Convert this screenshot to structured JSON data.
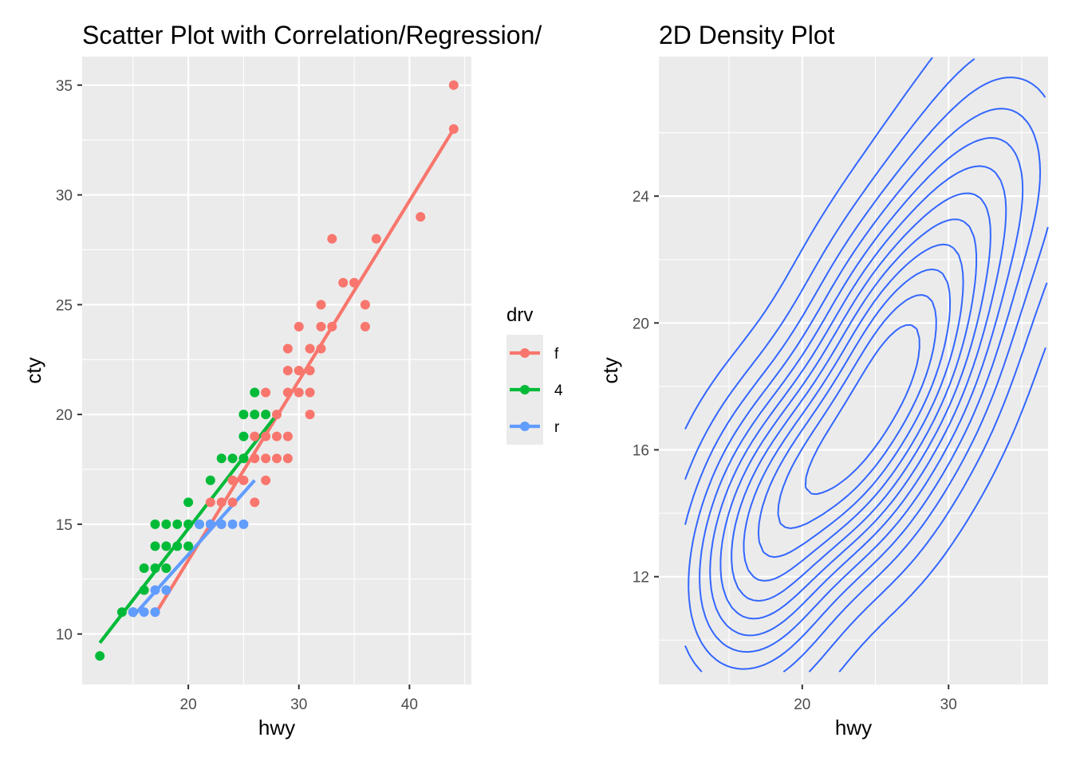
{
  "chart_data": [
    {
      "type": "scatter",
      "title": "Scatter Plot with Correlation/Regression/",
      "xlabel": "hwy",
      "ylabel": "cty",
      "xlim": [
        10.4,
        45.6
      ],
      "ylim": [
        7.7,
        36.3
      ],
      "xticks": [
        20,
        30,
        40
      ],
      "yticks": [
        10,
        15,
        20,
        25,
        30,
        35
      ],
      "grid": true,
      "legend": {
        "title": "drv",
        "placement": "right",
        "entries": [
          {
            "label": "f",
            "color": "#F8766D"
          },
          {
            "label": "4",
            "color": "#00BA38"
          },
          {
            "label": "r",
            "color": "#619CFF"
          }
        ]
      },
      "series": [
        {
          "name": "f",
          "color": "#F8766D",
          "points": [
            [
              44,
              35
            ],
            [
              44,
              33
            ],
            [
              41,
              29
            ],
            [
              37,
              28
            ],
            [
              33,
              28
            ],
            [
              35,
              26
            ],
            [
              34,
              26
            ],
            [
              36,
              25
            ],
            [
              32,
              25
            ],
            [
              30,
              24
            ],
            [
              32,
              24
            ],
            [
              33,
              24
            ],
            [
              36,
              24
            ],
            [
              29,
              23
            ],
            [
              31,
              23
            ],
            [
              32,
              23
            ],
            [
              29,
              22
            ],
            [
              30,
              22
            ],
            [
              31,
              22
            ],
            [
              29,
              21
            ],
            [
              30,
              21
            ],
            [
              31,
              21
            ],
            [
              27,
              21
            ],
            [
              31,
              20
            ],
            [
              28,
              20
            ],
            [
              26,
              19
            ],
            [
              27,
              19
            ],
            [
              28,
              19
            ],
            [
              29,
              19
            ],
            [
              26,
              18
            ],
            [
              27,
              18
            ],
            [
              28,
              18
            ],
            [
              29,
              18
            ],
            [
              24,
              17
            ],
            [
              25,
              17
            ],
            [
              27,
              17
            ],
            [
              22,
              16
            ],
            [
              23,
              16
            ],
            [
              24,
              16
            ],
            [
              26,
              16
            ],
            [
              22,
              15
            ],
            [
              23,
              15
            ],
            [
              17,
              11
            ]
          ],
          "regression": [
            [
              17,
              10.9
            ],
            [
              44,
              33
            ]
          ]
        },
        {
          "name": "4",
          "color": "#00BA38",
          "points": [
            [
              12,
              9
            ],
            [
              14,
              11
            ],
            [
              15,
              11
            ],
            [
              16,
              12
            ],
            [
              16,
              13
            ],
            [
              17,
              13
            ],
            [
              18,
              13
            ],
            [
              17,
              14
            ],
            [
              18,
              14
            ],
            [
              19,
              14
            ],
            [
              20,
              14
            ],
            [
              17,
              15
            ],
            [
              18,
              15
            ],
            [
              19,
              15
            ],
            [
              20,
              15
            ],
            [
              21,
              15
            ],
            [
              20,
              16
            ],
            [
              22,
              17
            ],
            [
              23,
              18
            ],
            [
              24,
              18
            ],
            [
              25,
              18
            ],
            [
              25,
              19
            ],
            [
              25,
              20
            ],
            [
              26,
              20
            ],
            [
              27,
              20
            ],
            [
              26,
              21
            ]
          ],
          "regression": [
            [
              12,
              9.6
            ],
            [
              28,
              20
            ]
          ]
        },
        {
          "name": "r",
          "color": "#619CFF",
          "points": [
            [
              15,
              11
            ],
            [
              16,
              11
            ],
            [
              17,
              11
            ],
            [
              17,
              12
            ],
            [
              18,
              12
            ],
            [
              21,
              15
            ],
            [
              22,
              15
            ],
            [
              23,
              15
            ],
            [
              24,
              15
            ],
            [
              25,
              15
            ]
          ],
          "regression": [
            [
              15,
              10.8
            ],
            [
              26,
              17
            ]
          ]
        }
      ]
    },
    {
      "type": "line",
      "title": "2D Density Plot",
      "xlabel": "hwy",
      "ylabel": "cty",
      "xlim": [
        10.2,
        36.8
      ],
      "ylim": [
        8.6,
        28.4
      ],
      "xticks": [
        20,
        30
      ],
      "yticks": [
        12,
        16,
        20,
        24
      ],
      "grid": true,
      "contour_color": "#3366FF",
      "modes": [
        {
          "x": 17.8,
          "y": 13.5
        },
        {
          "x": 26.0,
          "y": 18.3
        }
      ],
      "contour_levels": 12
    }
  ]
}
